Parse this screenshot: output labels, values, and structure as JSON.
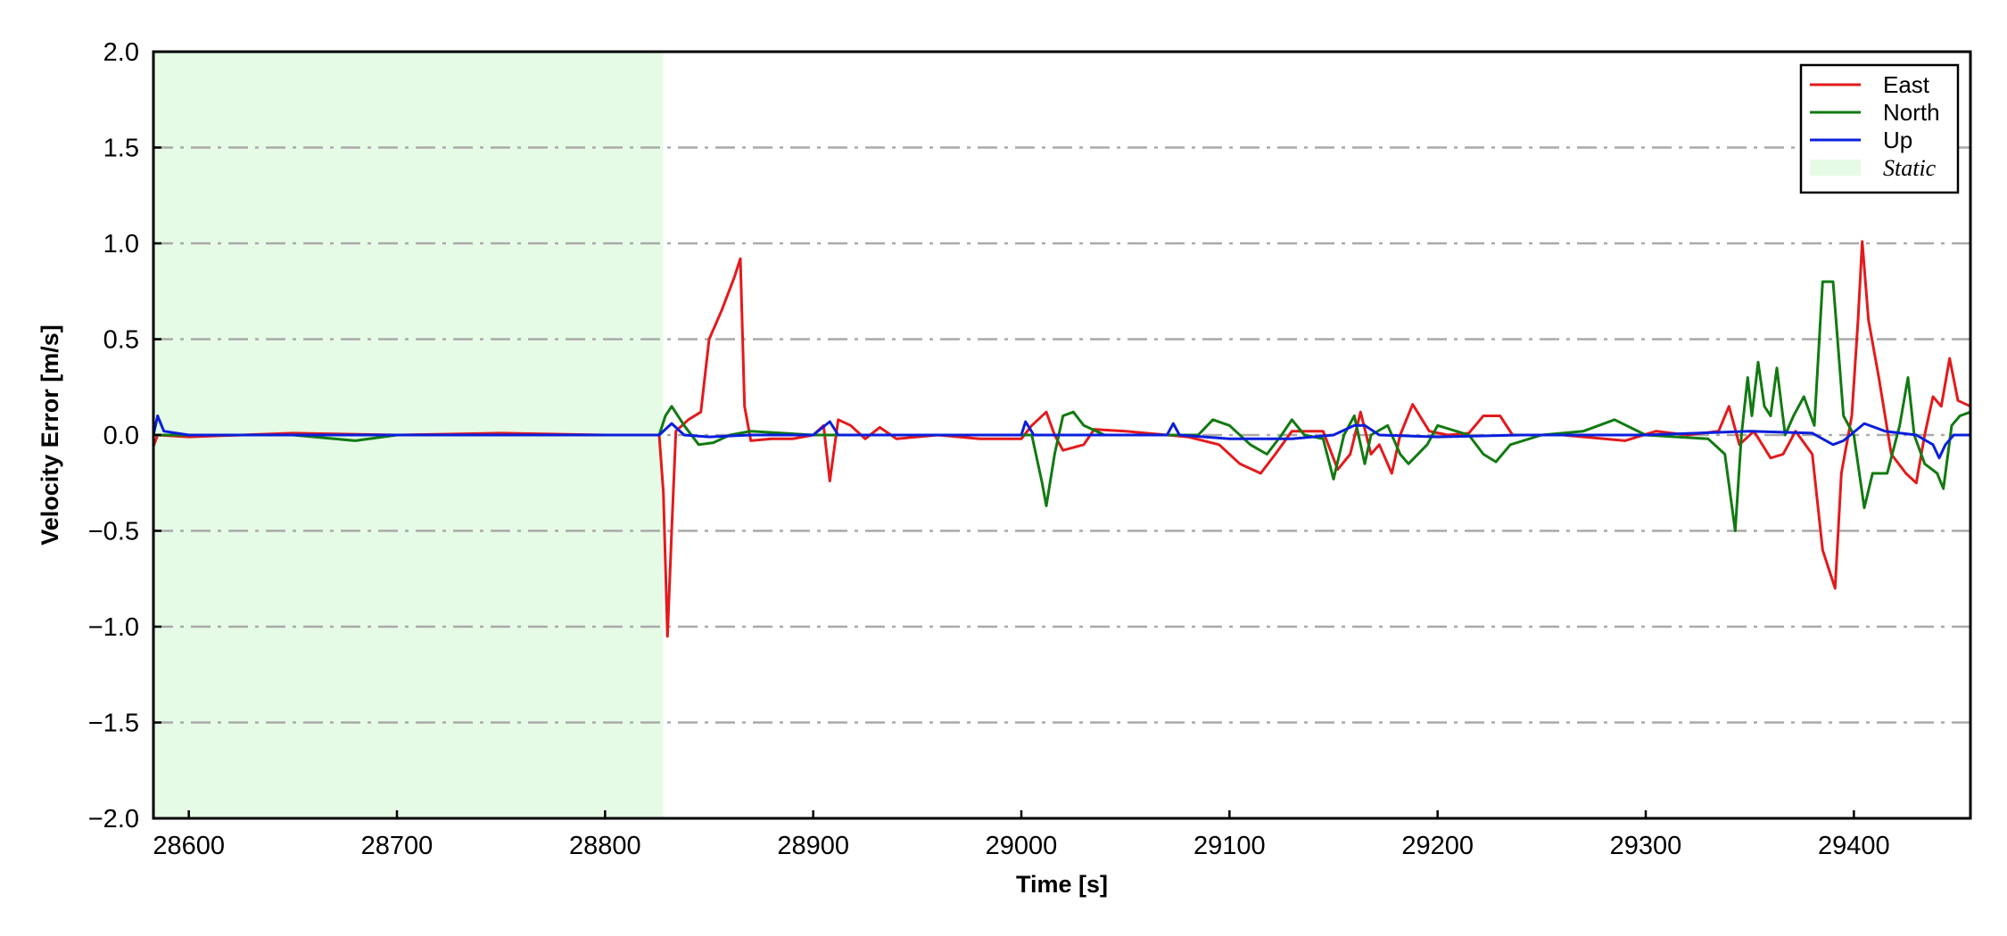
{
  "chart_data": {
    "type": "line",
    "title": "",
    "xlabel": "Time [s]",
    "ylabel": "Velocity Error [m/s]",
    "xlim": [
      28583,
      29456
    ],
    "ylim": [
      -2.0,
      2.0
    ],
    "xticks": [
      28600,
      28700,
      28800,
      28900,
      29000,
      29100,
      29200,
      29300,
      29400
    ],
    "yticks": [
      -2.0,
      -1.5,
      -1.0,
      -0.5,
      0.0,
      0.5,
      1.0,
      1.5,
      2.0
    ],
    "ytick_labels": [
      "−2.0",
      "−1.5",
      "−1.0",
      "−0.5",
      "0.0",
      "0.5",
      "1.0",
      "1.5",
      "2.0"
    ],
    "grid": "horizontal dash-dot",
    "legend_position": "top-right",
    "static_region": {
      "label": "Static",
      "x_start": 28583,
      "x_end": 28828,
      "color": "#e6fbe6"
    },
    "series": [
      {
        "name": "East",
        "color": "#e31a1c",
        "points": [
          [
            28583,
            -0.06
          ],
          [
            28585,
            0.0
          ],
          [
            28600,
            -0.01
          ],
          [
            28650,
            0.01
          ],
          [
            28700,
            0.0
          ],
          [
            28750,
            0.01
          ],
          [
            28800,
            0.0
          ],
          [
            28826,
            0.0
          ],
          [
            28828,
            -0.3
          ],
          [
            28830,
            -1.05
          ],
          [
            28832,
            -0.5
          ],
          [
            28834,
            0.02
          ],
          [
            28840,
            0.08
          ],
          [
            28846,
            0.12
          ],
          [
            28850,
            0.5
          ],
          [
            28856,
            0.65
          ],
          [
            28862,
            0.82
          ],
          [
            28865,
            0.92
          ],
          [
            28867,
            0.15
          ],
          [
            28870,
            -0.03
          ],
          [
            28880,
            -0.02
          ],
          [
            28890,
            -0.02
          ],
          [
            28900,
            0.0
          ],
          [
            28905,
            0.05
          ],
          [
            28908,
            -0.24
          ],
          [
            28912,
            0.08
          ],
          [
            28918,
            0.05
          ],
          [
            28925,
            -0.02
          ],
          [
            28932,
            0.04
          ],
          [
            28940,
            -0.02
          ],
          [
            28960,
            0.0
          ],
          [
            28980,
            -0.02
          ],
          [
            29000,
            -0.02
          ],
          [
            29005,
            0.05
          ],
          [
            29012,
            0.12
          ],
          [
            29016,
            0.0
          ],
          [
            29020,
            -0.08
          ],
          [
            29030,
            -0.05
          ],
          [
            29035,
            0.03
          ],
          [
            29050,
            0.02
          ],
          [
            29080,
            -0.01
          ],
          [
            29095,
            -0.05
          ],
          [
            29105,
            -0.15
          ],
          [
            29115,
            -0.2
          ],
          [
            29122,
            -0.1
          ],
          [
            29130,
            0.02
          ],
          [
            29145,
            0.02
          ],
          [
            29152,
            -0.18
          ],
          [
            29158,
            -0.1
          ],
          [
            29163,
            0.12
          ],
          [
            29168,
            -0.1
          ],
          [
            29172,
            -0.05
          ],
          [
            29178,
            -0.2
          ],
          [
            29182,
            0.0
          ],
          [
            29188,
            0.16
          ],
          [
            29196,
            0.02
          ],
          [
            29205,
            0.0
          ],
          [
            29215,
            0.01
          ],
          [
            29222,
            0.1
          ],
          [
            29230,
            0.1
          ],
          [
            29236,
            0.0
          ],
          [
            29260,
            0.0
          ],
          [
            29290,
            -0.03
          ],
          [
            29305,
            0.02
          ],
          [
            29320,
            0.0
          ],
          [
            29335,
            0.02
          ],
          [
            29340,
            0.15
          ],
          [
            29345,
            -0.05
          ],
          [
            29352,
            0.02
          ],
          [
            29360,
            -0.12
          ],
          [
            29366,
            -0.1
          ],
          [
            29372,
            0.02
          ],
          [
            29380,
            -0.1
          ],
          [
            29385,
            -0.6
          ],
          [
            29391,
            -0.8
          ],
          [
            29394,
            -0.2
          ],
          [
            29399,
            0.1
          ],
          [
            29402,
            0.6
          ],
          [
            29404,
            1.01
          ],
          [
            29407,
            0.6
          ],
          [
            29412,
            0.3
          ],
          [
            29418,
            -0.1
          ],
          [
            29425,
            -0.2
          ],
          [
            29430,
            -0.25
          ],
          [
            29434,
            0.0
          ],
          [
            29438,
            0.2
          ],
          [
            29442,
            0.15
          ],
          [
            29446,
            0.4
          ],
          [
            29450,
            0.18
          ],
          [
            29456,
            0.15
          ]
        ]
      },
      {
        "name": "North",
        "color": "#117a11",
        "points": [
          [
            28583,
            0.0
          ],
          [
            28600,
            0.0
          ],
          [
            28650,
            0.0
          ],
          [
            28680,
            -0.03
          ],
          [
            28700,
            0.0
          ],
          [
            28750,
            0.0
          ],
          [
            28800,
            0.0
          ],
          [
            28826,
            0.0
          ],
          [
            28829,
            0.1
          ],
          [
            28832,
            0.15
          ],
          [
            28838,
            0.05
          ],
          [
            28845,
            -0.05
          ],
          [
            28852,
            -0.04
          ],
          [
            28860,
            0.0
          ],
          [
            28870,
            0.02
          ],
          [
            28900,
            0.0
          ],
          [
            28950,
            0.0
          ],
          [
            29000,
            0.0
          ],
          [
            29005,
            0.0
          ],
          [
            29010,
            -0.25
          ],
          [
            29012,
            -0.37
          ],
          [
            29016,
            -0.1
          ],
          [
            29020,
            0.1
          ],
          [
            29025,
            0.12
          ],
          [
            29030,
            0.05
          ],
          [
            29040,
            0.0
          ],
          [
            29060,
            0.0
          ],
          [
            29085,
            0.0
          ],
          [
            29092,
            0.08
          ],
          [
            29100,
            0.05
          ],
          [
            29110,
            -0.05
          ],
          [
            29118,
            -0.1
          ],
          [
            29125,
            0.0
          ],
          [
            29130,
            0.08
          ],
          [
            29136,
            0.0
          ],
          [
            29145,
            -0.02
          ],
          [
            29150,
            -0.23
          ],
          [
            29155,
            0.0
          ],
          [
            29160,
            0.1
          ],
          [
            29165,
            -0.15
          ],
          [
            29168,
            0.0
          ],
          [
            29176,
            0.05
          ],
          [
            29182,
            -0.1
          ],
          [
            29186,
            -0.15
          ],
          [
            29195,
            -0.05
          ],
          [
            29200,
            0.05
          ],
          [
            29215,
            0.0
          ],
          [
            29222,
            -0.1
          ],
          [
            29228,
            -0.14
          ],
          [
            29235,
            -0.05
          ],
          [
            29250,
            0.0
          ],
          [
            29270,
            0.02
          ],
          [
            29285,
            0.08
          ],
          [
            29300,
            0.0
          ],
          [
            29330,
            -0.02
          ],
          [
            29338,
            -0.1
          ],
          [
            29343,
            -0.5
          ],
          [
            29346,
            0.0
          ],
          [
            29349,
            0.3
          ],
          [
            29351,
            0.1
          ],
          [
            29354,
            0.38
          ],
          [
            29357,
            0.15
          ],
          [
            29360,
            0.1
          ],
          [
            29363,
            0.35
          ],
          [
            29367,
            0.0
          ],
          [
            29371,
            0.1
          ],
          [
            29376,
            0.2
          ],
          [
            29381,
            0.05
          ],
          [
            29385,
            0.8
          ],
          [
            29390,
            0.8
          ],
          [
            29395,
            0.1
          ],
          [
            29400,
            0.0
          ],
          [
            29405,
            -0.38
          ],
          [
            29409,
            -0.2
          ],
          [
            29416,
            -0.2
          ],
          [
            29422,
            0.05
          ],
          [
            29426,
            0.3
          ],
          [
            29429,
            0.0
          ],
          [
            29434,
            -0.15
          ],
          [
            29440,
            -0.2
          ],
          [
            29443,
            -0.28
          ],
          [
            29447,
            0.05
          ],
          [
            29451,
            0.1
          ],
          [
            29456,
            0.12
          ]
        ]
      },
      {
        "name": "Up",
        "color": "#0a1fdb",
        "points": [
          [
            28583,
            0.0
          ],
          [
            28585,
            0.1
          ],
          [
            28588,
            0.02
          ],
          [
            28600,
            0.0
          ],
          [
            28650,
            0.0
          ],
          [
            28700,
            0.0
          ],
          [
            28750,
            0.0
          ],
          [
            28800,
            0.0
          ],
          [
            28826,
            0.0
          ],
          [
            28832,
            0.06
          ],
          [
            28838,
            0.0
          ],
          [
            28850,
            -0.01
          ],
          [
            28870,
            0.0
          ],
          [
            28900,
            0.0
          ],
          [
            28908,
            0.07
          ],
          [
            28912,
            0.0
          ],
          [
            28950,
            0.0
          ],
          [
            29000,
            0.0
          ],
          [
            29002,
            0.07
          ],
          [
            29006,
            0.0
          ],
          [
            29040,
            0.0
          ],
          [
            29070,
            0.0
          ],
          [
            29073,
            0.06
          ],
          [
            29076,
            0.0
          ],
          [
            29100,
            -0.02
          ],
          [
            29130,
            -0.02
          ],
          [
            29150,
            0.0
          ],
          [
            29160,
            0.05
          ],
          [
            29165,
            0.05
          ],
          [
            29172,
            0.0
          ],
          [
            29200,
            -0.01
          ],
          [
            29240,
            0.0
          ],
          [
            29270,
            0.0
          ],
          [
            29300,
            0.0
          ],
          [
            29350,
            0.02
          ],
          [
            29380,
            0.01
          ],
          [
            29390,
            -0.05
          ],
          [
            29395,
            -0.03
          ],
          [
            29405,
            0.06
          ],
          [
            29415,
            0.02
          ],
          [
            29430,
            0.0
          ],
          [
            29438,
            -0.05
          ],
          [
            29441,
            -0.12
          ],
          [
            29444,
            -0.05
          ],
          [
            29448,
            0.0
          ],
          [
            29456,
            0.0
          ]
        ]
      }
    ]
  }
}
